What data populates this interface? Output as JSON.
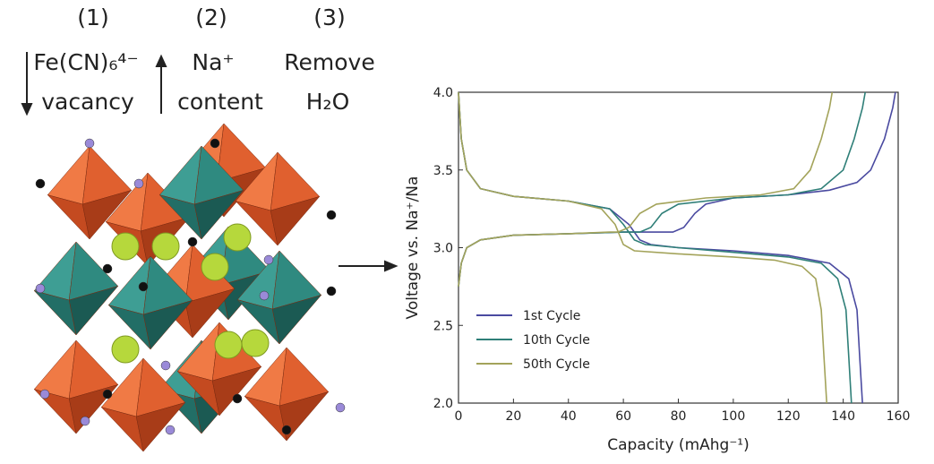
{
  "structure_panel": {
    "steps": [
      {
        "number": "(1)",
        "line1": "Fe(CN)₆⁴⁻",
        "line2": "vacancy"
      },
      {
        "number": "(2)",
        "line1": "Na⁺",
        "line2": "content"
      },
      {
        "number": "(3)",
        "line1": "Remove",
        "line2": "H₂O"
      }
    ]
  },
  "chart_data": {
    "type": "line",
    "x_label": "Capacity (mAhg⁻¹)",
    "y_label": "Voltage vs. Na⁺/Na",
    "xlim": [
      0,
      160
    ],
    "xticks": [
      0,
      20,
      40,
      60,
      80,
      100,
      120,
      140,
      160
    ],
    "ylim": [
      2,
      4
    ],
    "yticks": [
      {
        "value": 2,
        "label": "2.0"
      },
      {
        "value": 2.5,
        "label": "2.5"
      },
      {
        "value": 3,
        "label": "3.0"
      },
      {
        "value": 3.5,
        "label": "3.5"
      },
      {
        "value": 4,
        "label": "4.0"
      }
    ],
    "legend": "lower left",
    "series": [
      {
        "name": "1st Cycle",
        "color": "#4a4aa0",
        "x": [
          0,
          1,
          3,
          8,
          20,
          40,
          60,
          70,
          78,
          82,
          86,
          90,
          100,
          120,
          135,
          145,
          150,
          155,
          158,
          159,
          null,
          0,
          1,
          3,
          8,
          20,
          40,
          55,
          62,
          66,
          70,
          80,
          100,
          120,
          135,
          142,
          145,
          146,
          147
        ],
        "values": [
          2.75,
          2.9,
          3.0,
          3.05,
          3.08,
          3.09,
          3.1,
          3.1,
          3.1,
          3.13,
          3.22,
          3.28,
          3.32,
          3.34,
          3.37,
          3.42,
          3.5,
          3.7,
          3.9,
          4.0,
          null,
          4.0,
          3.7,
          3.5,
          3.38,
          3.33,
          3.3,
          3.25,
          3.15,
          3.05,
          3.02,
          3.0,
          2.98,
          2.95,
          2.9,
          2.8,
          2.6,
          2.3,
          2.0
        ]
      },
      {
        "name": "10th Cycle",
        "color": "#2f7f78",
        "x": [
          0,
          1,
          3,
          8,
          20,
          40,
          60,
          66,
          70,
          74,
          80,
          100,
          120,
          132,
          140,
          144,
          147,
          148,
          null,
          0,
          1,
          3,
          8,
          20,
          40,
          55,
          60,
          64,
          68,
          80,
          100,
          120,
          132,
          138,
          141,
          142,
          143
        ],
        "values": [
          2.75,
          2.9,
          3.0,
          3.05,
          3.08,
          3.09,
          3.1,
          3.1,
          3.13,
          3.22,
          3.28,
          3.32,
          3.34,
          3.38,
          3.5,
          3.7,
          3.9,
          4.0,
          null,
          4.0,
          3.7,
          3.5,
          3.38,
          3.33,
          3.3,
          3.25,
          3.15,
          3.05,
          3.02,
          3.0,
          2.97,
          2.94,
          2.9,
          2.8,
          2.6,
          2.3,
          2.0
        ]
      },
      {
        "name": "50th Cycle",
        "color": "#a3a35a",
        "x": [
          0,
          1,
          3,
          8,
          20,
          40,
          55,
          58,
          62,
          66,
          72,
          90,
          110,
          122,
          128,
          132,
          135,
          136,
          null,
          0,
          1,
          3,
          8,
          20,
          40,
          52,
          57,
          60,
          64,
          80,
          100,
          115,
          125,
          130,
          132,
          133,
          134
        ],
        "values": [
          2.75,
          2.9,
          3.0,
          3.05,
          3.08,
          3.09,
          3.1,
          3.1,
          3.13,
          3.22,
          3.28,
          3.32,
          3.34,
          3.38,
          3.5,
          3.7,
          3.9,
          4.0,
          null,
          4.0,
          3.7,
          3.5,
          3.38,
          3.33,
          3.3,
          3.25,
          3.15,
          3.02,
          2.98,
          2.96,
          2.94,
          2.92,
          2.88,
          2.8,
          2.6,
          2.3,
          2.0
        ]
      }
    ]
  }
}
